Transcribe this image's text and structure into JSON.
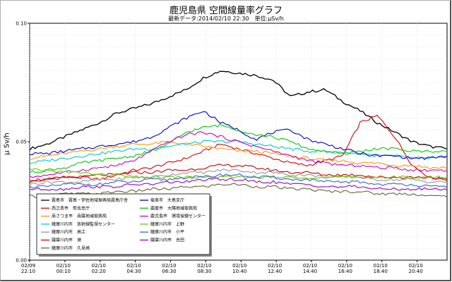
{
  "chart_data": {
    "type": "line",
    "title": "鹿児島県 空間線量率グラフ",
    "subtitle": "最新データ:2014/02/10 22:30　単位:μSv/h",
    "ylabel": "μ Sv/h",
    "ylim": [
      0,
      0.1
    ],
    "yticks": [
      "0.00",
      "0.05",
      "0.10"
    ],
    "xticks": [
      {
        "date": "02/09",
        "time": "22:10"
      },
      {
        "date": "02/10",
        "time": "00:10"
      },
      {
        "date": "02/10",
        "time": "02:20"
      },
      {
        "date": "02/10",
        "time": "04:30"
      },
      {
        "date": "02/10",
        "time": "06:30"
      },
      {
        "date": "02/10",
        "time": "08:30"
      },
      {
        "date": "02/10",
        "time": "10:40"
      },
      {
        "date": "02/10",
        "time": "12:40"
      },
      {
        "date": "02/10",
        "time": "14:40"
      },
      {
        "date": "02/10",
        "time": "16:40"
      },
      {
        "date": "02/10",
        "time": "18:40"
      },
      {
        "date": "02/10",
        "time": "20:40"
      }
    ],
    "x_points_per_tick": 12,
    "grid": true,
    "legend_placement": "lower-left",
    "series": [
      {
        "name": "霧島市　霧島・伊佐地域振興局霧島庁舎",
        "color": "#000000",
        "values": [
          0.047,
          0.049,
          0.052,
          0.055,
          0.058,
          0.062,
          0.064,
          0.066,
          0.069,
          0.072,
          0.077,
          0.08,
          0.079,
          0.078,
          0.076,
          0.069,
          0.071,
          0.072,
          0.067,
          0.063,
          0.058,
          0.054,
          0.05,
          0.048,
          0.047
        ]
      },
      {
        "name": "西之表市　熊毛支庁",
        "color": "#dd0000",
        "values": [
          0.033,
          0.034,
          0.035,
          0.035,
          0.034,
          0.036,
          0.038,
          0.039,
          0.041,
          0.043,
          0.046,
          0.049,
          0.047,
          0.045,
          0.043,
          0.041,
          0.04,
          0.042,
          0.044,
          0.058,
          0.061,
          0.052,
          0.04,
          0.035,
          0.034
        ]
      },
      {
        "name": "南さつま市　南薩地域振興局",
        "color": "#ff9900",
        "values": [
          0.043,
          0.044,
          0.045,
          0.046,
          0.047,
          0.048,
          0.049,
          0.049,
          0.05,
          0.049,
          0.048,
          0.047,
          0.046,
          0.046,
          0.045,
          0.044,
          0.043,
          0.042,
          0.042,
          0.041,
          0.041,
          0.04,
          0.04,
          0.039,
          0.039
        ]
      },
      {
        "name": "薩摩川内市　放射線監視センター",
        "color": "#00cccc",
        "values": [
          0.041,
          0.042,
          0.043,
          0.044,
          0.045,
          0.046,
          0.047,
          0.047,
          0.048,
          0.049,
          0.05,
          0.05,
          0.05,
          0.049,
          0.048,
          0.047,
          0.046,
          0.046,
          0.045,
          0.045,
          0.044,
          0.044,
          0.043,
          0.043,
          0.043
        ]
      },
      {
        "name": "薩摩川内市　高江",
        "color": "#999999",
        "values": [
          0.032,
          0.033,
          0.033,
          0.033,
          0.034,
          0.034,
          0.035,
          0.035,
          0.036,
          0.037,
          0.037,
          0.038,
          0.038,
          0.037,
          0.037,
          0.036,
          0.036,
          0.035,
          0.035,
          0.035,
          0.034,
          0.034,
          0.034,
          0.033,
          0.033
        ]
      },
      {
        "name": "薩摩川内市　港",
        "color": "#cc0000",
        "values": [
          0.034,
          0.034,
          0.035,
          0.035,
          0.036,
          0.036,
          0.037,
          0.037,
          0.038,
          0.038,
          0.039,
          0.04,
          0.04,
          0.039,
          0.038,
          0.037,
          0.037,
          0.036,
          0.036,
          0.036,
          0.035,
          0.035,
          0.035,
          0.035,
          0.034
        ]
      },
      {
        "name": "薩摩川内市　久見崎",
        "color": "#666633",
        "values": [
          0.027,
          0.027,
          0.028,
          0.028,
          0.028,
          0.029,
          0.029,
          0.03,
          0.03,
          0.031,
          0.031,
          0.032,
          0.032,
          0.031,
          0.031,
          0.03,
          0.03,
          0.029,
          0.029,
          0.029,
          0.028,
          0.028,
          0.028,
          0.027,
          0.027
        ]
      },
      {
        "name": "奄美市　大島支庁",
        "color": "#0000cc",
        "values": [
          0.045,
          0.045,
          0.046,
          0.047,
          0.048,
          0.049,
          0.05,
          0.052,
          0.056,
          0.06,
          0.063,
          0.058,
          0.055,
          0.051,
          0.054,
          0.055,
          0.051,
          0.049,
          0.047,
          0.045,
          0.044,
          0.044,
          0.043,
          0.043,
          0.044
        ]
      },
      {
        "name": "鹿屋市　大隅地域振興局",
        "color": "#00cc00",
        "values": [
          0.037,
          0.038,
          0.039,
          0.041,
          0.042,
          0.043,
          0.044,
          0.046,
          0.049,
          0.054,
          0.056,
          0.057,
          0.055,
          0.053,
          0.052,
          0.05,
          0.047,
          0.046,
          0.045,
          0.046,
          0.047,
          0.047,
          0.046,
          0.046,
          0.046
        ]
      },
      {
        "name": "鹿児島市　環境保健センター",
        "color": "#cc00cc",
        "values": [
          0.035,
          0.036,
          0.037,
          0.038,
          0.039,
          0.04,
          0.042,
          0.046,
          0.05,
          0.053,
          0.054,
          0.052,
          0.05,
          0.048,
          0.046,
          0.044,
          0.042,
          0.041,
          0.04,
          0.04,
          0.039,
          0.039,
          0.038,
          0.038,
          0.038
        ]
      },
      {
        "name": "薩摩川内市　上野",
        "color": "#66cc00",
        "values": [
          0.038,
          0.038,
          0.037,
          0.037,
          0.036,
          0.036,
          0.035,
          0.035,
          0.035,
          0.035,
          0.035,
          0.035,
          0.035,
          0.035,
          0.035,
          0.035,
          0.035,
          0.035,
          0.035,
          0.035,
          0.035,
          0.035,
          0.035,
          0.035,
          0.035
        ]
      },
      {
        "name": "薩摩川内市　小平",
        "color": "#3366cc",
        "values": [
          0.031,
          0.031,
          0.032,
          0.032,
          0.032,
          0.033,
          0.033,
          0.034,
          0.034,
          0.035,
          0.035,
          0.036,
          0.036,
          0.035,
          0.035,
          0.034,
          0.034,
          0.033,
          0.033,
          0.033,
          0.032,
          0.032,
          0.032,
          0.031,
          0.031
        ]
      },
      {
        "name": "薩摩川内市　吉田",
        "color": "#9900cc",
        "values": [
          0.03,
          0.03,
          0.03,
          0.031,
          0.031,
          0.031,
          0.032,
          0.032,
          0.033,
          0.033,
          0.034,
          0.034,
          0.034,
          0.033,
          0.033,
          0.032,
          0.032,
          0.031,
          0.031,
          0.031,
          0.03,
          0.03,
          0.03,
          0.03,
          0.03
        ]
      }
    ]
  }
}
